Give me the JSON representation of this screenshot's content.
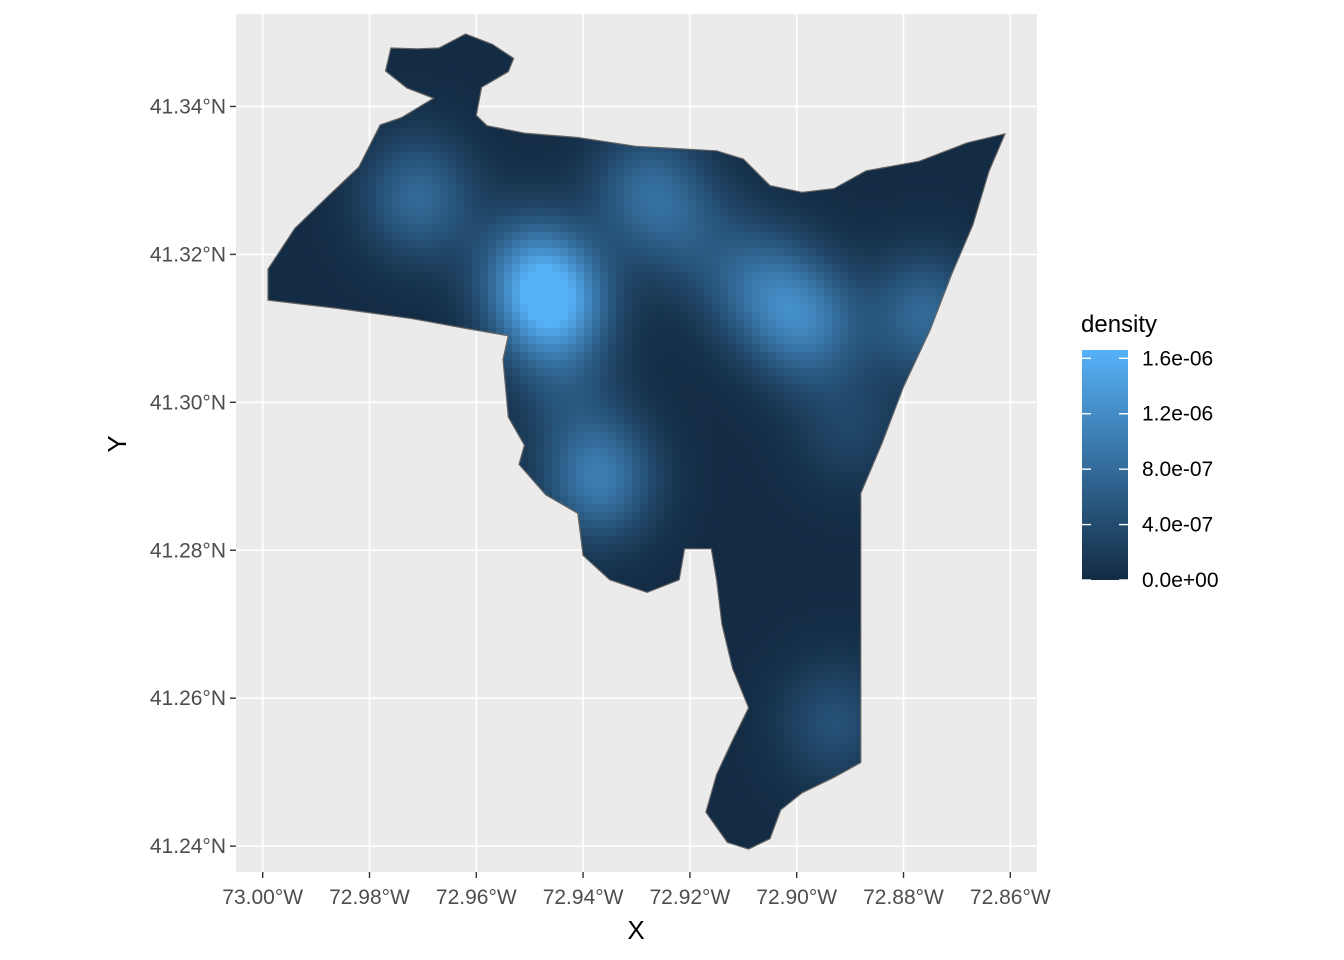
{
  "chart_data": {
    "type": "heatmap",
    "subtype": "kernel density map (raster masked to polygon)",
    "title": "",
    "xlabel": "X",
    "ylabel": "Y",
    "xlim": [
      -73.005,
      -72.855
    ],
    "ylim": [
      41.2365,
      41.3525
    ],
    "x_ticks": [
      -73.0,
      -72.98,
      -72.96,
      -72.94,
      -72.92,
      -72.9,
      -72.88,
      -72.86
    ],
    "x_tick_labels": [
      "73.00°W",
      "72.98°W",
      "72.96°W",
      "72.94°W",
      "72.92°W",
      "72.90°W",
      "72.88°W",
      "72.86°W"
    ],
    "y_ticks": [
      41.24,
      41.26,
      41.28,
      41.3,
      41.32,
      41.34
    ],
    "y_tick_labels": [
      "41.24°N",
      "41.26°N",
      "41.28°N",
      "41.30°N",
      "41.32°N",
      "41.34°N"
    ],
    "grid": true,
    "legend": {
      "title": "density",
      "position": "right",
      "breaks": [
        0.0,
        4e-07,
        8e-07,
        1.2e-06,
        1.6e-06
      ],
      "labels": [
        "0.0e+00",
        "4.0e-07",
        "8.0e-07",
        "1.2e-06",
        "1.6e-06"
      ],
      "range": [
        0.0,
        1.66e-06
      ],
      "low_color": "#132B43",
      "high_color": "#56B1F7"
    },
    "boundary": [
      [
        -72.999,
        41.3138
      ],
      [
        -72.999,
        41.318
      ],
      [
        -72.994,
        41.3235
      ],
      [
        -72.988,
        41.3277
      ],
      [
        -72.982,
        41.3318
      ],
      [
        -72.978,
        41.3375
      ],
      [
        -72.974,
        41.3385
      ],
      [
        -72.968,
        41.3411
      ],
      [
        -72.973,
        41.3425
      ],
      [
        -72.977,
        41.3448
      ],
      [
        -72.976,
        41.3479
      ],
      [
        -72.971,
        41.3478
      ],
      [
        -72.967,
        41.3479
      ],
      [
        -72.962,
        41.3498
      ],
      [
        -72.957,
        41.3484
      ],
      [
        -72.953,
        41.3465
      ],
      [
        -72.954,
        41.3447
      ],
      [
        -72.959,
        41.3426
      ],
      [
        -72.96,
        41.3388
      ],
      [
        -72.958,
        41.3374
      ],
      [
        -72.951,
        41.3364
      ],
      [
        -72.941,
        41.3358
      ],
      [
        -72.93,
        41.3346
      ],
      [
        -72.915,
        41.334
      ],
      [
        -72.91,
        41.3329
      ],
      [
        -72.905,
        41.3293
      ],
      [
        -72.899,
        41.3284
      ],
      [
        -72.893,
        41.3289
      ],
      [
        -72.887,
        41.3313
      ],
      [
        -72.877,
        41.3326
      ],
      [
        -72.868,
        41.3351
      ],
      [
        -72.861,
        41.3363
      ],
      [
        -72.864,
        41.3312
      ],
      [
        -72.867,
        41.324
      ],
      [
        -72.871,
        41.3173
      ],
      [
        -72.875,
        41.3098
      ],
      [
        -72.88,
        41.3021
      ],
      [
        -72.884,
        41.2945
      ],
      [
        -72.888,
        41.2877
      ],
      [
        -72.888,
        41.273
      ],
      [
        -72.888,
        41.26
      ],
      [
        -72.888,
        41.2513
      ],
      [
        -72.893,
        41.2493
      ],
      [
        -72.899,
        41.2472
      ],
      [
        -72.903,
        41.2449
      ],
      [
        -72.905,
        41.241
      ],
      [
        -72.909,
        41.2396
      ],
      [
        -72.913,
        41.2405
      ],
      [
        -72.917,
        41.2446
      ],
      [
        -72.915,
        41.2497
      ],
      [
        -72.912,
        41.2543
      ],
      [
        -72.909,
        41.2587
      ],
      [
        -72.912,
        41.264
      ],
      [
        -72.914,
        41.27
      ],
      [
        -72.915,
        41.276
      ],
      [
        -72.916,
        41.2802
      ],
      [
        -72.921,
        41.2802
      ],
      [
        -72.922,
        41.276
      ],
      [
        -72.928,
        41.2743
      ],
      [
        -72.935,
        41.276
      ],
      [
        -72.94,
        41.2793
      ],
      [
        -72.941,
        41.285
      ],
      [
        -72.947,
        41.2875
      ],
      [
        -72.952,
        41.2916
      ],
      [
        -72.951,
        41.2942
      ],
      [
        -72.954,
        41.298
      ],
      [
        -72.955,
        41.3058
      ],
      [
        -72.954,
        41.309
      ],
      [
        -72.962,
        41.31
      ],
      [
        -72.972,
        41.3113
      ],
      [
        -72.986,
        41.3127
      ]
    ],
    "hotspots": [
      {
        "x": -72.971,
        "y": 41.3277,
        "value": 7.6e-07
      },
      {
        "x": -72.946,
        "y": 41.3137,
        "value": 1.62e-06
      },
      {
        "x": -72.951,
        "y": 41.3187,
        "value": 5.2e-07
      },
      {
        "x": -72.928,
        "y": 41.3287,
        "value": 7.2e-07
      },
      {
        "x": -72.937,
        "y": 41.2897,
        "value": 9.9e-07
      },
      {
        "x": -72.943,
        "y": 41.3017,
        "value": 3.4e-07
      },
      {
        "x": -72.907,
        "y": 41.3157,
        "value": 7e-07
      },
      {
        "x": -72.898,
        "y": 41.3107,
        "value": 9.2e-07
      },
      {
        "x": -72.876,
        "y": 41.3117,
        "value": 7.6e-07
      },
      {
        "x": -72.89,
        "y": 41.2967,
        "value": 3.2e-07
      },
      {
        "x": -72.893,
        "y": 41.2567,
        "value": 4.6e-07
      },
      {
        "x": -72.92,
        "y": 41.3227,
        "value": 3.8e-07
      }
    ]
  }
}
